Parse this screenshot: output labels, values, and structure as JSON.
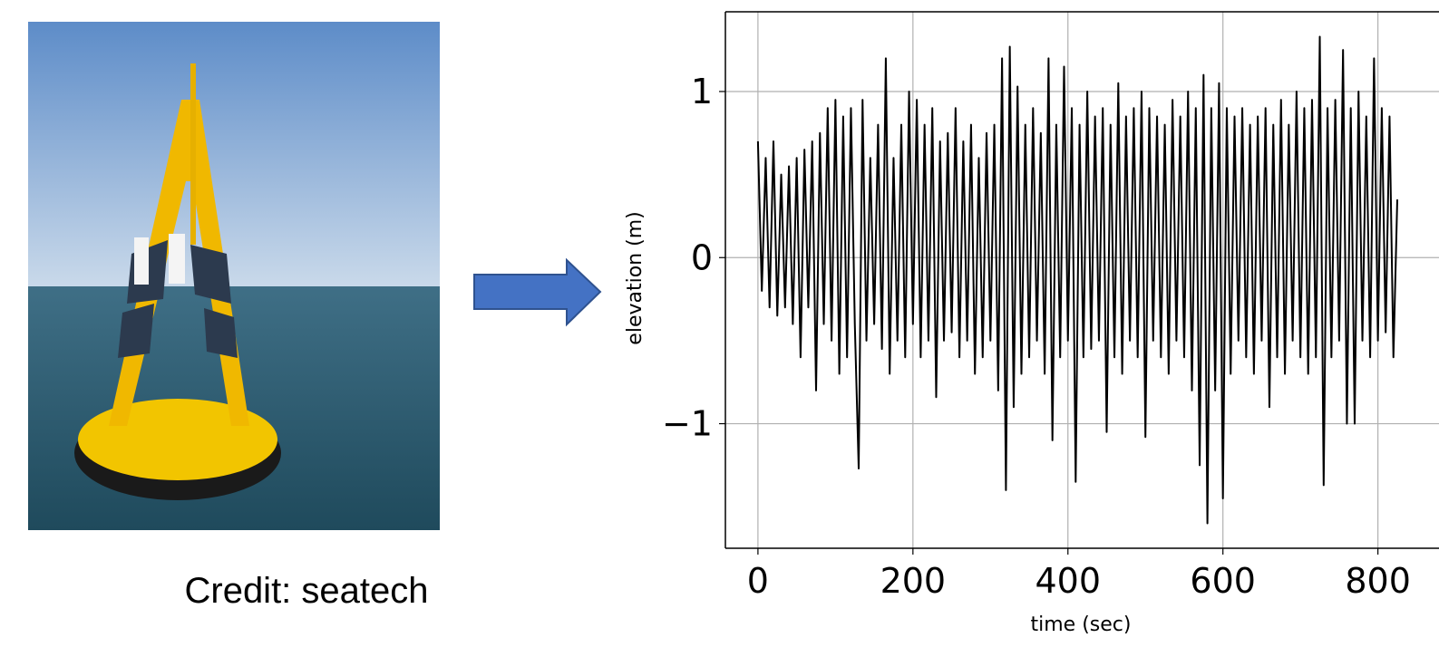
{
  "caption": "Credit: seatech",
  "chart_data": {
    "type": "line",
    "xlabel": "time (sec)",
    "ylabel": "elevation (m)",
    "x": [
      0,
      5,
      10,
      15,
      20,
      25,
      30,
      35,
      40,
      45,
      50,
      55,
      60,
      65,
      70,
      75,
      80,
      85,
      90,
      95,
      100,
      105,
      110,
      115,
      120,
      125,
      130,
      135,
      140,
      145,
      150,
      155,
      160,
      165,
      170,
      175,
      180,
      185,
      190,
      195,
      200,
      205,
      210,
      215,
      220,
      225,
      230,
      235,
      240,
      245,
      250,
      255,
      260,
      265,
      270,
      275,
      280,
      285,
      290,
      295,
      300,
      305,
      310,
      315,
      320,
      325,
      330,
      335,
      340,
      345,
      350,
      355,
      360,
      365,
      370,
      375,
      380,
      385,
      390,
      395,
      400,
      405,
      410,
      415,
      420,
      425,
      430,
      435,
      440,
      445,
      450,
      455,
      460,
      465,
      470,
      475,
      480,
      485,
      490,
      495,
      500,
      505,
      510,
      515,
      520,
      525,
      530,
      535,
      540,
      545,
      550,
      555,
      560,
      565,
      570,
      575,
      580,
      585,
      590,
      595,
      600,
      605,
      610,
      615,
      620,
      625,
      630,
      635,
      640,
      645,
      650,
      655,
      660,
      665,
      670,
      675,
      680,
      685,
      690,
      695,
      700,
      705,
      710,
      715,
      720,
      725,
      730,
      735,
      740,
      745,
      750,
      755,
      760,
      765,
      770,
      775,
      780,
      785,
      790,
      795,
      800,
      805,
      810,
      815,
      820,
      825
    ],
    "values": [
      0.7,
      -0.2,
      0.6,
      -0.3,
      0.7,
      -0.35,
      0.5,
      -0.3,
      0.55,
      -0.4,
      0.6,
      -0.6,
      0.65,
      -0.3,
      0.7,
      -0.8,
      0.75,
      -0.4,
      0.9,
      -0.5,
      0.95,
      -0.7,
      0.85,
      -0.6,
      0.9,
      -0.4,
      -1.27,
      0.95,
      -0.5,
      0.6,
      -0.4,
      0.8,
      -0.55,
      1.2,
      -0.7,
      0.6,
      -0.5,
      0.8,
      -0.6,
      1.0,
      -0.4,
      0.95,
      -0.6,
      0.8,
      -0.5,
      0.9,
      -0.84,
      0.7,
      -0.5,
      0.75,
      -0.45,
      0.9,
      -0.6,
      0.7,
      -0.5,
      0.8,
      -0.7,
      0.6,
      -0.6,
      0.75,
      -0.5,
      0.8,
      -0.8,
      1.2,
      -1.4,
      1.27,
      -0.9,
      1.03,
      -0.7,
      0.8,
      -0.6,
      0.9,
      -0.5,
      0.75,
      -0.7,
      1.2,
      -1.1,
      0.8,
      -0.6,
      1.15,
      -0.5,
      0.9,
      -1.35,
      0.8,
      -0.6,
      1.0,
      -0.55,
      0.85,
      -0.5,
      0.9,
      -1.05,
      0.8,
      -0.6,
      1.05,
      -0.7,
      0.85,
      -0.5,
      0.9,
      -0.6,
      1.0,
      -1.08,
      0.9,
      -0.5,
      0.85,
      -0.6,
      0.8,
      -0.7,
      0.95,
      -0.5,
      0.85,
      -0.6,
      1.0,
      -0.8,
      0.9,
      -1.25,
      1.1,
      -1.6,
      0.9,
      -0.8,
      1.05,
      -1.45,
      0.9,
      -0.7,
      0.85,
      -0.5,
      0.9,
      -0.6,
      0.8,
      -0.7,
      0.85,
      -0.5,
      0.9,
      -0.9,
      0.8,
      -0.6,
      0.95,
      -0.7,
      0.8,
      -0.5,
      1.0,
      -0.6,
      0.9,
      -0.7,
      0.95,
      -0.6,
      1.33,
      -1.37,
      0.9,
      -0.6,
      0.95,
      -0.5,
      1.25,
      -1.0,
      0.9,
      -1.0,
      1.0,
      -0.5,
      0.85,
      -0.6,
      1.2,
      -0.5,
      0.9,
      -0.45,
      0.85,
      -0.6,
      0.35
    ],
    "color": "#000000",
    "xlim": [
      -42,
      880
    ],
    "ylim": [
      -1.75,
      1.48
    ],
    "xticks": [
      0,
      200,
      400,
      600,
      800
    ],
    "yticks": [
      {
        "value": -1,
        "label": "−1"
      },
      0,
      1
    ],
    "grid": true
  }
}
